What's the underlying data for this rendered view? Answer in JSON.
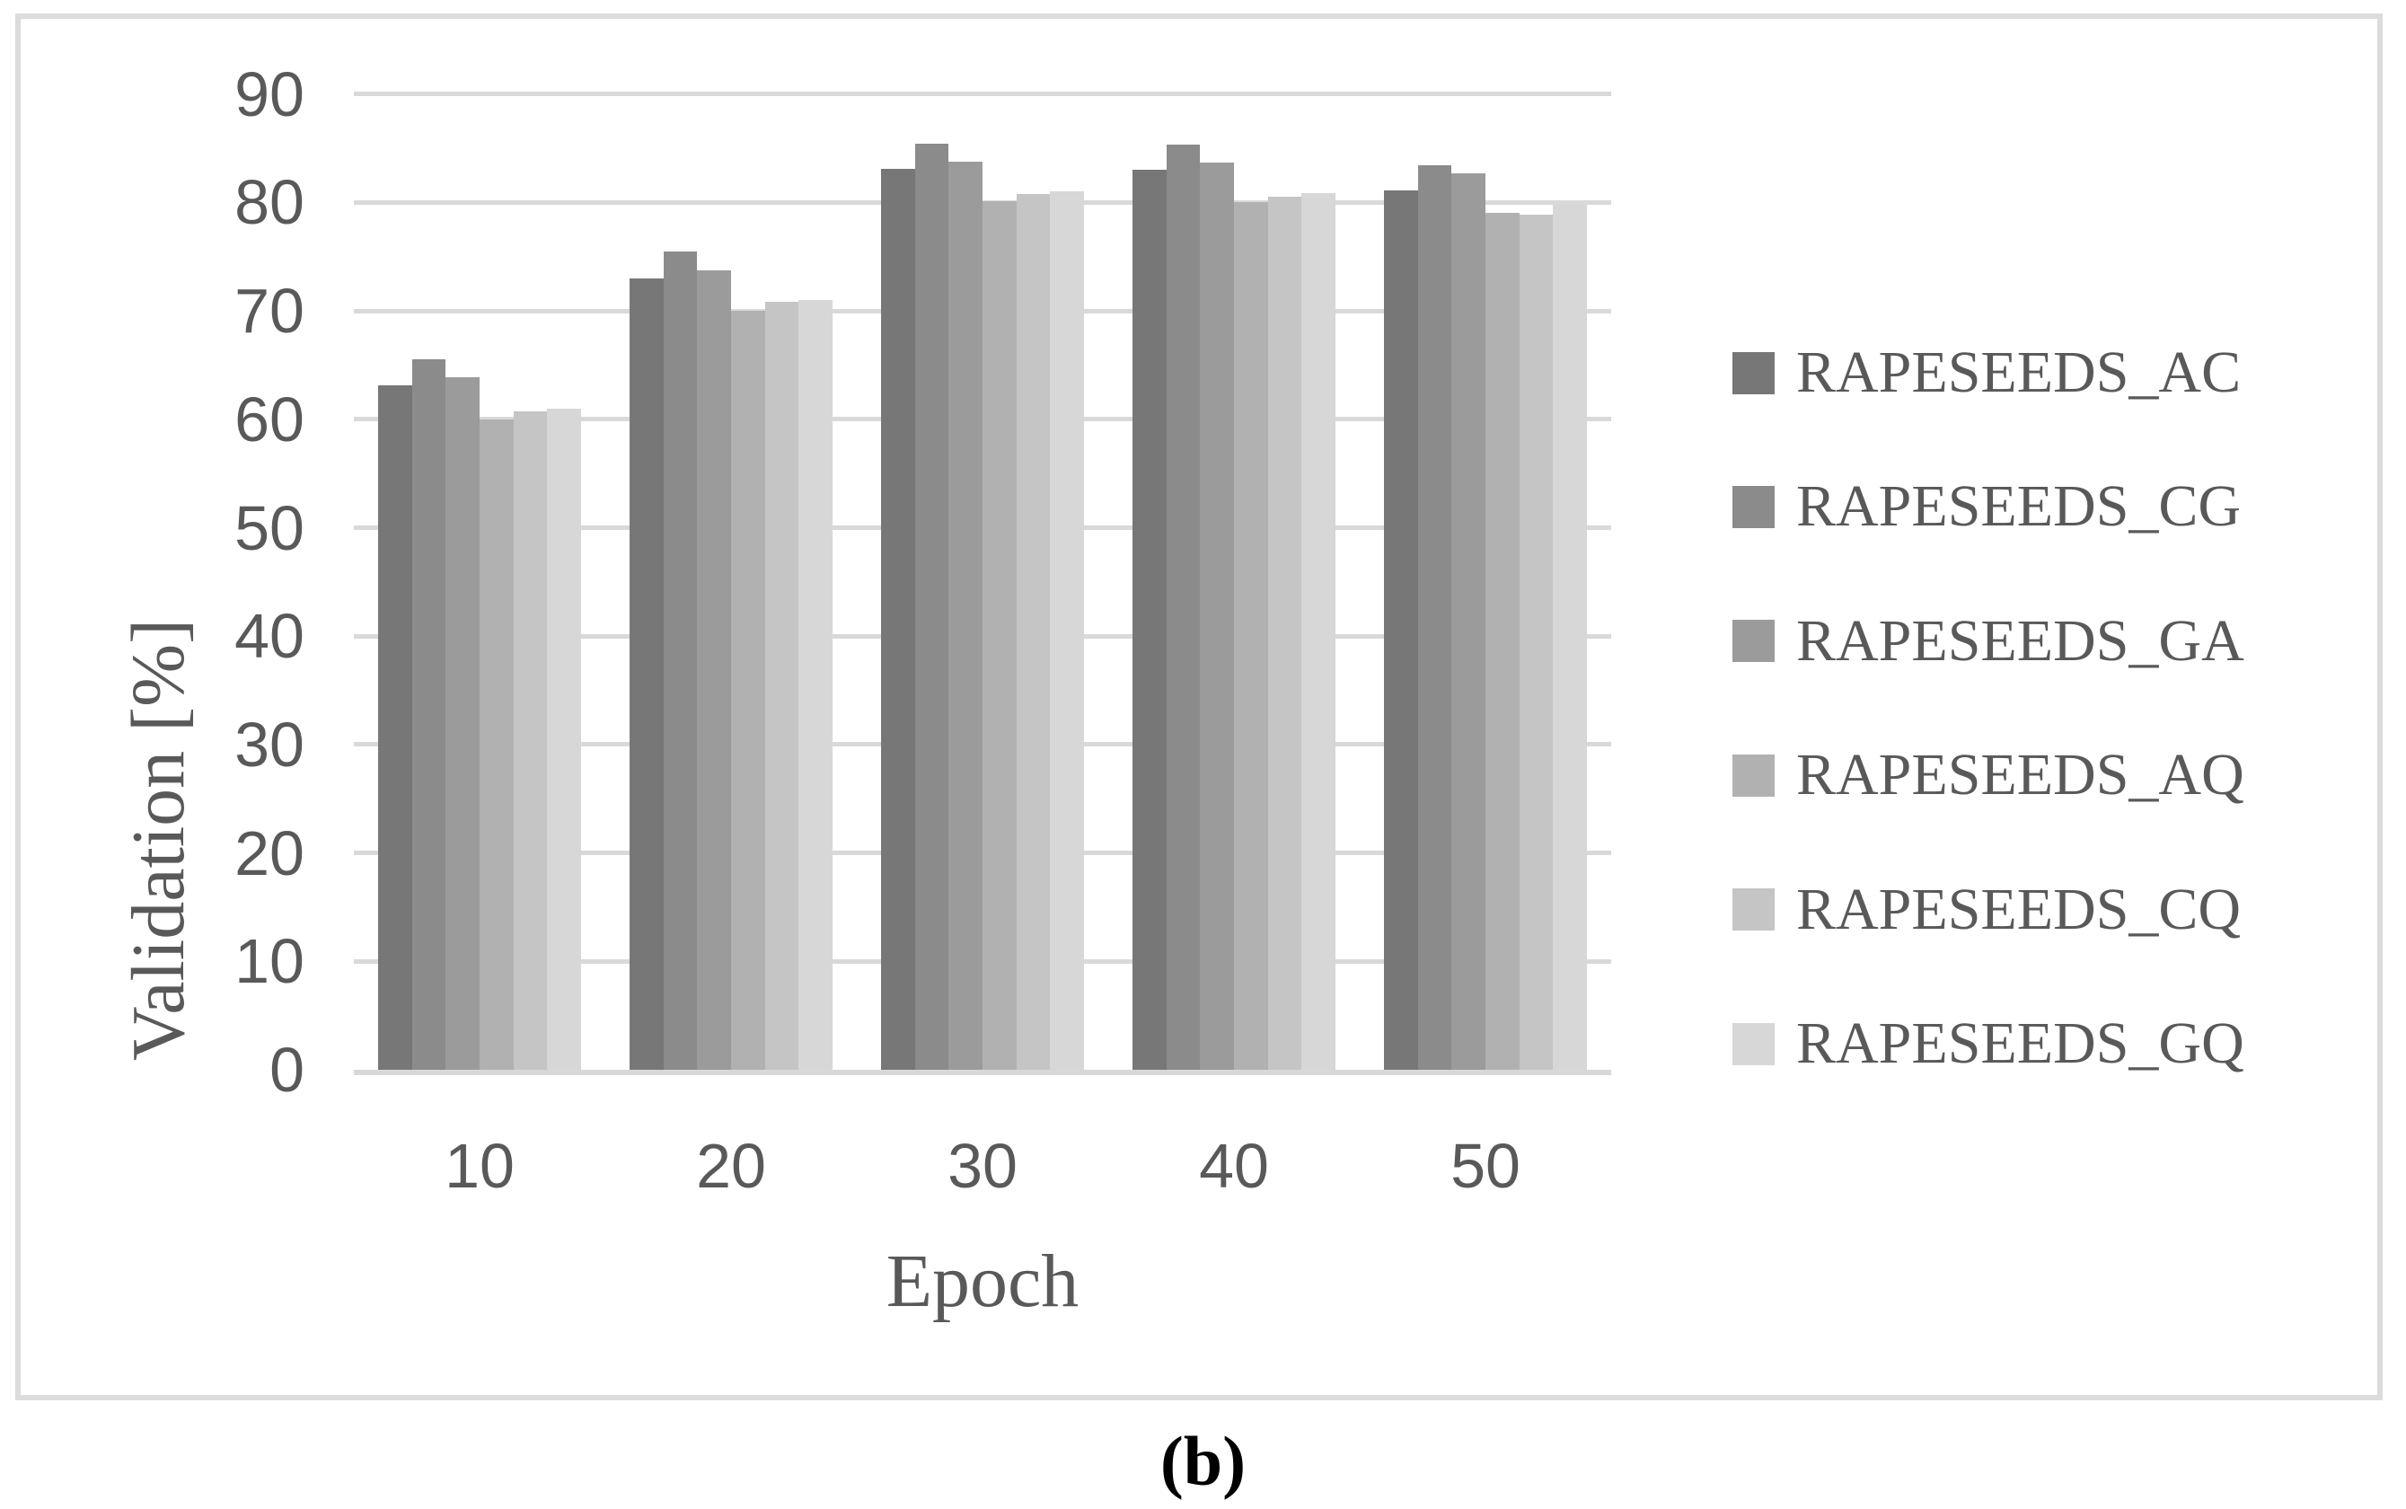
{
  "caption": "(b)",
  "colors": {
    "grid": "#d9d9d9",
    "axis_line": "#d8d8d8",
    "text": "#595959",
    "box_border": "#dcdcdc",
    "caption_text": "#000000",
    "background": "#ffffff"
  },
  "chart_data": {
    "type": "bar",
    "title": "",
    "xlabel": "Epoch",
    "ylabel": "Validation [%]",
    "ylim": [
      0,
      90
    ],
    "ytick_step": 10,
    "grid": true,
    "legend_position": "right",
    "categories": [
      "10",
      "20",
      "30",
      "40",
      "50"
    ],
    "yticks": [
      "0",
      "10",
      "20",
      "30",
      "40",
      "50",
      "60",
      "70",
      "80",
      "90"
    ],
    "series": [
      {
        "name": "RAPESEEDS_AC",
        "color": "#777777",
        "values": [
          63.1,
          73.0,
          83.1,
          83.0,
          81.1
        ]
      },
      {
        "name": "RAPESEEDS_CG",
        "color": "#8b8b8b",
        "values": [
          65.5,
          75.5,
          85.4,
          85.3,
          83.4
        ]
      },
      {
        "name": "RAPESEEDS_GA",
        "color": "#9b9b9b",
        "values": [
          63.9,
          73.7,
          83.8,
          83.7,
          82.7
        ]
      },
      {
        "name": "RAPESEEDS_AQ",
        "color": "#b1b1b1",
        "values": [
          60.0,
          70.0,
          80.1,
          80.0,
          79.0
        ]
      },
      {
        "name": "RAPESEEDS_CQ",
        "color": "#c5c5c5",
        "values": [
          60.7,
          70.8,
          80.8,
          80.5,
          78.9
        ]
      },
      {
        "name": "RAPESEEDS_GQ",
        "color": "#d7d7d7",
        "values": [
          61.0,
          71.0,
          81.0,
          80.9,
          79.8
        ]
      }
    ]
  }
}
